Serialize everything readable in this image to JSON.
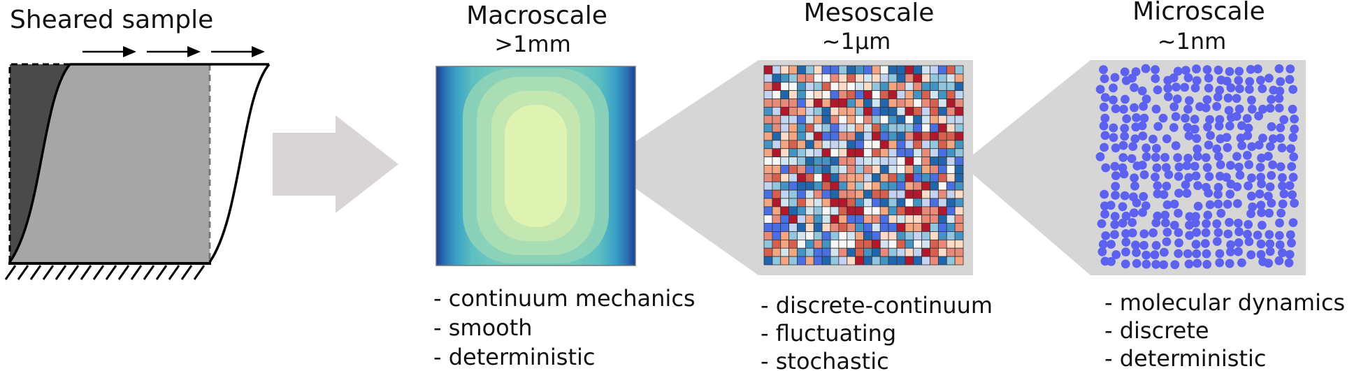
{
  "sample": {
    "title": "Sheared sample"
  },
  "panels": [
    {
      "id": "macro",
      "title": "Macroscale",
      "scale": ">1mm",
      "bullets": [
        "- continuum mechanics",
        "- smooth",
        "- deterministic"
      ]
    },
    {
      "id": "meso",
      "title": "Mesoscale",
      "scale": "~1µm",
      "bullets": [
        "- discrete-continuum",
        "- fluctuating",
        "- stochastic"
      ]
    },
    {
      "id": "micro",
      "title": "Microscale",
      "scale": "~1nm",
      "bullets": [
        "- molecular dynamics",
        "- discrete",
        "- deterministic"
      ]
    }
  ],
  "colors": {
    "sample_dark": "#4a4a4a",
    "sample_mid": "#a6a6a6",
    "zoom_band": "#d6d6d6",
    "flow_arrow": "#d9d5d6",
    "particle": "#5c61f0"
  }
}
